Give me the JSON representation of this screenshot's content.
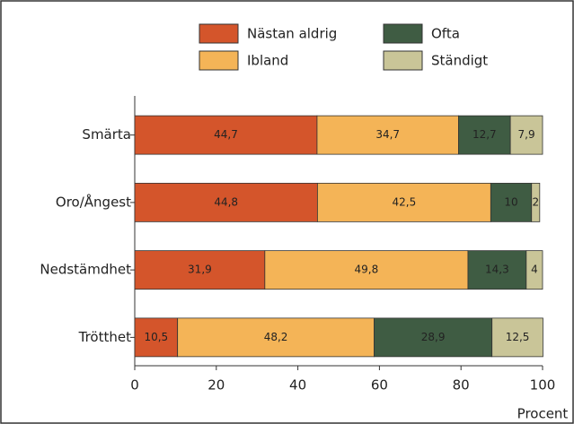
{
  "chart_data": {
    "type": "stacked-bar-horizontal",
    "categories": [
      "Smärta",
      "Oro/Ångest",
      "Nedstämdhet",
      "Trötthet"
    ],
    "series": [
      {
        "name": "Nästan aldrig",
        "color": "#d4552b",
        "values": [
          44.7,
          44.8,
          31.9,
          10.5
        ],
        "value_labels": [
          "44,7",
          "44,8",
          "31,9",
          "10,5"
        ]
      },
      {
        "name": "Ibland",
        "color": "#f4b457",
        "values": [
          34.7,
          42.5,
          49.8,
          48.2
        ],
        "value_labels": [
          "34,7",
          "42,5",
          "49,8",
          "48,2"
        ]
      },
      {
        "name": "Ofta",
        "color": "#3f5c43",
        "values": [
          12.7,
          10,
          14.3,
          28.9
        ],
        "value_labels": [
          "12,7",
          "10",
          "14,3",
          "28,9"
        ]
      },
      {
        "name": "Ständigt",
        "color": "#c9c598",
        "values": [
          7.9,
          2,
          4,
          12.5
        ],
        "value_labels": [
          "7,9",
          "2",
          "4",
          "12,5"
        ]
      }
    ],
    "xlim": [
      0,
      100
    ],
    "xticks": [
      0,
      20,
      40,
      60,
      80,
      100
    ],
    "xlabel": "Procent"
  }
}
